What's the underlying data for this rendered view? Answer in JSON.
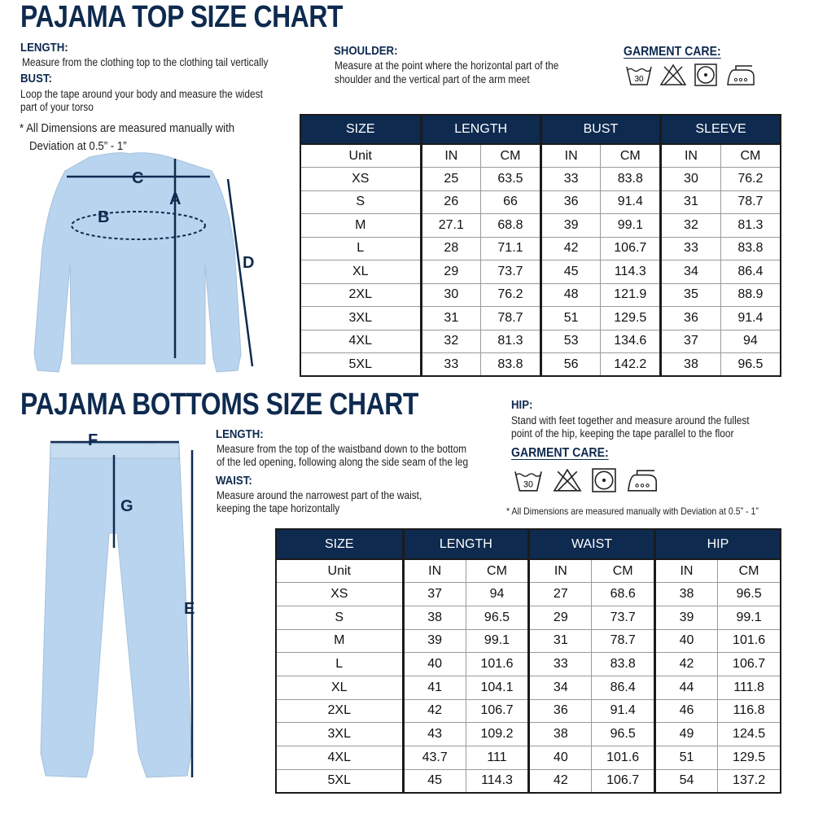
{
  "top": {
    "title": "PAJAMA TOP SIZE CHART",
    "length_label": "LENGTH:",
    "length_desc": "Measure from the clothing top to the clothing tail vertically",
    "bust_label": "BUST:",
    "bust_desc": [
      "Loop the tape around your body and measure the widest",
      "part of your torso"
    ],
    "note": [
      "* All Dimensions are measured manually with",
      "Deviation at 0.5” - 1”"
    ],
    "shoulder_label": "SHOULDER:",
    "shoulder_desc": [
      "Measure at the point where the horizontal part of the",
      "shoulder and the vertical part of the arm meet"
    ],
    "care_label": "GARMENT CARE:",
    "care_icons": [
      "wash-30-icon",
      "no-bleach-icon",
      "tumble-dry-icon",
      "iron-high-icon"
    ],
    "wash_temp": "30",
    "diagram_labels": {
      "a": "A",
      "b": "B",
      "c": "C",
      "d": "D"
    },
    "table": {
      "headers": [
        "SIZE",
        "LENGTH",
        "BUST",
        "SLEEVE"
      ],
      "unit_row": [
        "Unit",
        "IN",
        "CM",
        "IN",
        "CM",
        "IN",
        "CM"
      ],
      "rows": [
        [
          "XS",
          "25",
          "63.5",
          "33",
          "83.8",
          "30",
          "76.2"
        ],
        [
          "S",
          "26",
          "66",
          "36",
          "91.4",
          "31",
          "78.7"
        ],
        [
          "M",
          "27.1",
          "68.8",
          "39",
          "99.1",
          "32",
          "81.3"
        ],
        [
          "L",
          "28",
          "71.1",
          "42",
          "106.7",
          "33",
          "83.8"
        ],
        [
          "XL",
          "29",
          "73.7",
          "45",
          "114.3",
          "34",
          "86.4"
        ],
        [
          "2XL",
          "30",
          "76.2",
          "48",
          "121.9",
          "35",
          "88.9"
        ],
        [
          "3XL",
          "31",
          "78.7",
          "51",
          "129.5",
          "36",
          "91.4"
        ],
        [
          "4XL",
          "32",
          "81.3",
          "53",
          "134.6",
          "37",
          "94"
        ],
        [
          "5XL",
          "33",
          "83.8",
          "56",
          "142.2",
          "38",
          "96.5"
        ]
      ]
    }
  },
  "bottom": {
    "title": "PAJAMA BOTTOMS SIZE CHART",
    "length_label": "LENGTH:",
    "length_desc": [
      "Measure from the top of the waistband down to the bottom",
      "of the led opening, following along the side seam of the leg"
    ],
    "waist_label": "WAIST:",
    "waist_desc": [
      "Measure around the narrowest part of the waist,",
      "keeping the tape horizontally"
    ],
    "hip_label": "HIP:",
    "hip_desc": [
      "Stand with feet together and measure around the fullest",
      "point of the hip, keeping the tape parallel to the floor"
    ],
    "care_label": "GARMENT CARE:",
    "wash_temp": "30",
    "note": "* All Dimensions are measured manually with Deviation at 0.5” - 1”",
    "diagram_labels": {
      "e": "E",
      "f": "F",
      "g": "G"
    },
    "table": {
      "headers": [
        "SIZE",
        "LENGTH",
        "WAIST",
        "HIP"
      ],
      "unit_row": [
        "Unit",
        "IN",
        "CM",
        "IN",
        "CM",
        "IN",
        "CM"
      ],
      "rows": [
        [
          "XS",
          "37",
          "94",
          "27",
          "68.6",
          "38",
          "96.5"
        ],
        [
          "S",
          "38",
          "96.5",
          "29",
          "73.7",
          "39",
          "99.1"
        ],
        [
          "M",
          "39",
          "99.1",
          "31",
          "78.7",
          "40",
          "101.6"
        ],
        [
          "L",
          "40",
          "101.6",
          "33",
          "83.8",
          "42",
          "106.7"
        ],
        [
          "XL",
          "41",
          "104.1",
          "34",
          "86.4",
          "44",
          "111.8"
        ],
        [
          "2XL",
          "42",
          "106.7",
          "36",
          "91.4",
          "46",
          "116.8"
        ],
        [
          "3XL",
          "43",
          "109.2",
          "38",
          "96.5",
          "49",
          "124.5"
        ],
        [
          "4XL",
          "43.7",
          "111",
          "40",
          "101.6",
          "51",
          "129.5"
        ],
        [
          "5XL",
          "45",
          "114.3",
          "42",
          "106.7",
          "54",
          "137.2"
        ]
      ]
    }
  },
  "colors": {
    "navy": "#0e2a4f",
    "garment": "#b9d4ee"
  }
}
